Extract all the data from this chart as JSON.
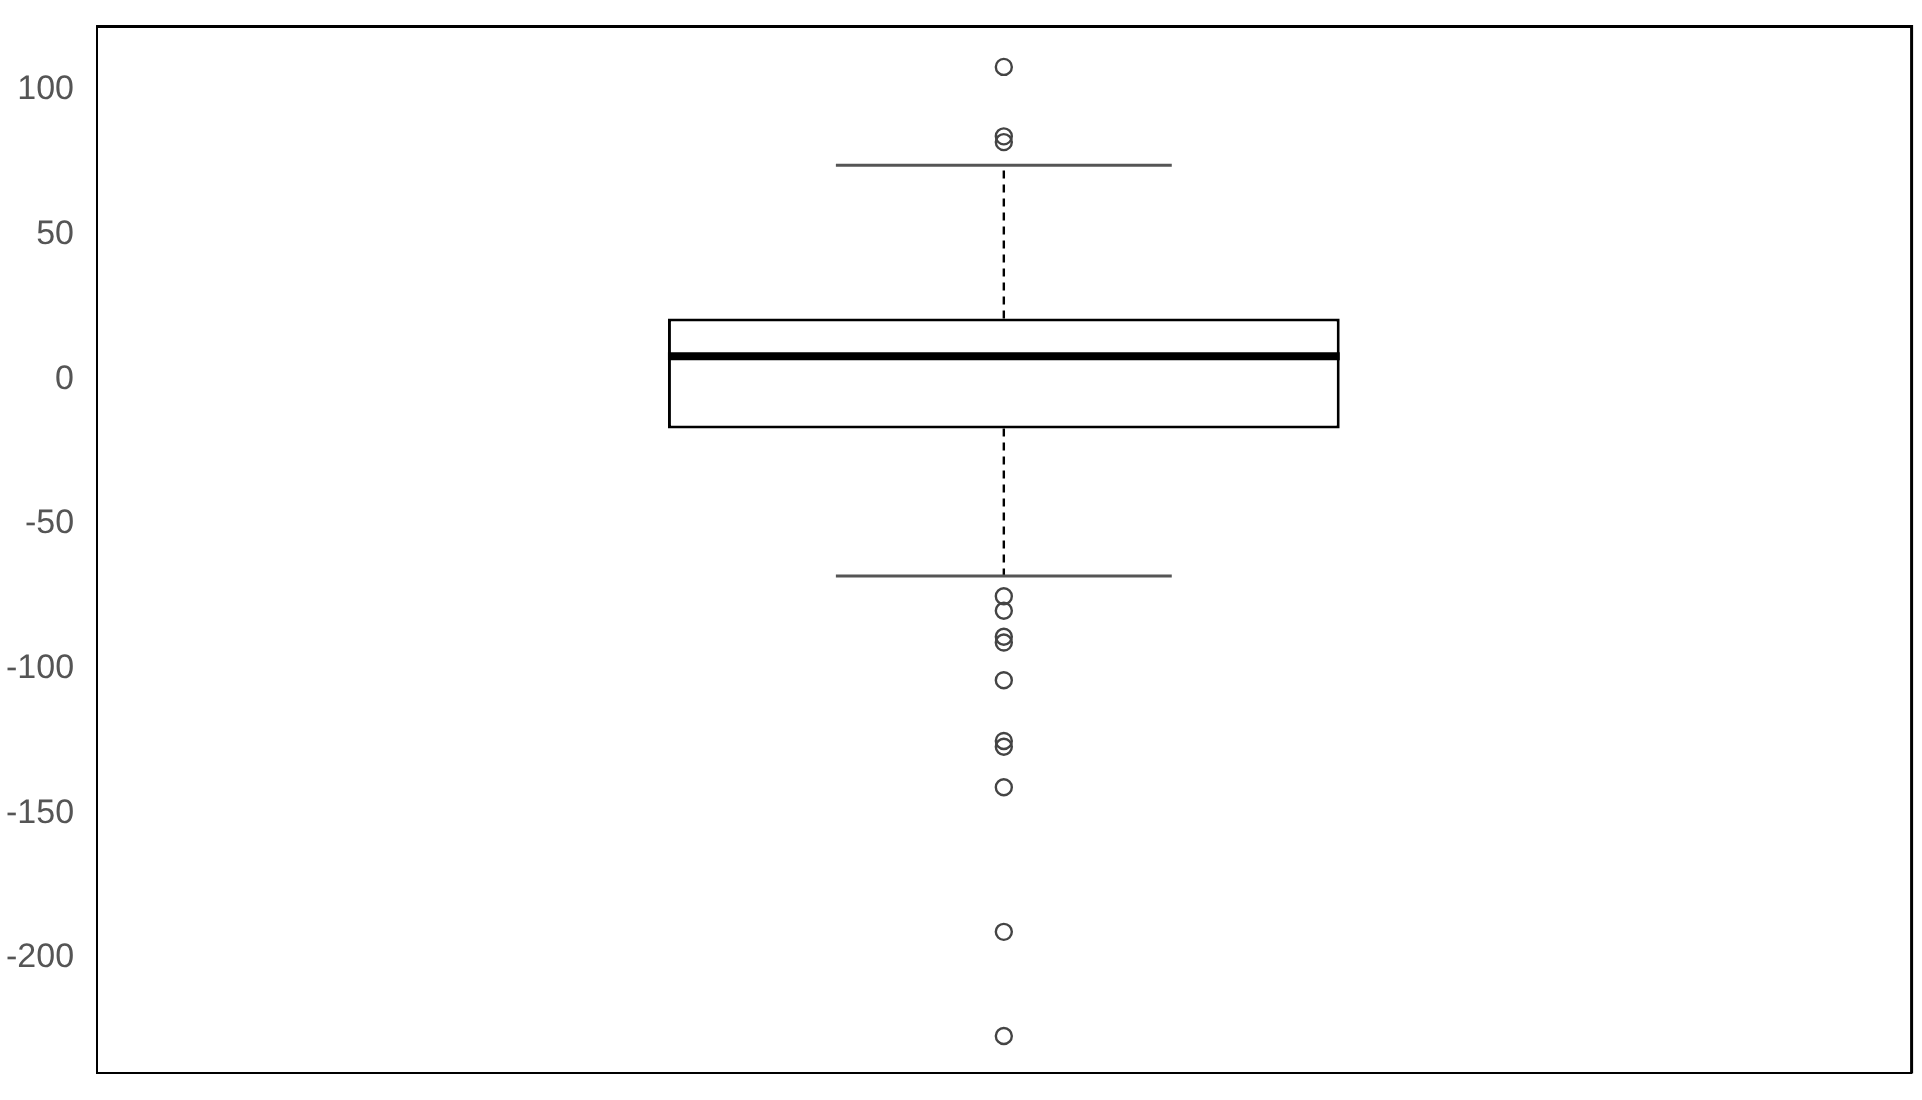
{
  "chart_data": {
    "type": "box",
    "categories": [
      null
    ],
    "boxes": [
      {
        "low": -68,
        "q1": -17,
        "median": 8,
        "q3": 21,
        "high": 74,
        "outliers": [
          108,
          84,
          82,
          -75,
          -80,
          -89,
          -91,
          -104,
          -125,
          -127,
          -141,
          -191,
          -227
        ]
      }
    ],
    "ylim": [
      -240,
      122
    ],
    "yticks": [
      -200,
      -150,
      -100,
      -50,
      0,
      50,
      100
    ],
    "grid": false,
    "legend": false
  }
}
